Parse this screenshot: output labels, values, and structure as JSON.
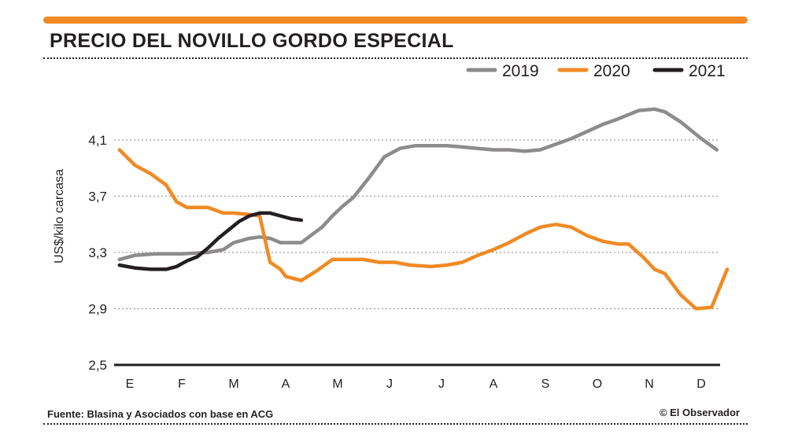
{
  "header": {
    "title": "PRECIO DEL NOVILLO GORDO ESPECIAL",
    "accent_color": "#f08a24"
  },
  "footer": {
    "source": "Fuente: Blasina y Asociados con base en ACG",
    "credit": "© El Observador"
  },
  "chart_data": {
    "type": "line",
    "title": "PRECIO DEL NOVILLO GORDO ESPECIAL",
    "xlabel": "",
    "ylabel": "US$/kilo carcasa",
    "ylim": [
      2.5,
      4.3
    ],
    "yticks": [
      2.5,
      2.9,
      3.3,
      3.7,
      4.1
    ],
    "ytick_labels": [
      "2,5",
      "2,9",
      "3,3",
      "3,7",
      "4,1"
    ],
    "xlim": [
      0,
      11.7
    ],
    "categories": [
      "E",
      "F",
      "M",
      "A",
      "M",
      "J",
      "J",
      "A",
      "S",
      "O",
      "N",
      "D"
    ],
    "grid": "horizontal dotted",
    "legend_position": "top-right",
    "series": [
      {
        "name": "2019",
        "color": "#8e8b8c",
        "x": [
          -0.2,
          0.1,
          0.5,
          1.0,
          1.5,
          1.8,
          2.0,
          2.3,
          2.5,
          2.7,
          2.9,
          3.1,
          3.3,
          3.7,
          3.9,
          4.1,
          4.3,
          4.6,
          4.9,
          5.2,
          5.5,
          5.8,
          6.1,
          6.4,
          6.7,
          7.0,
          7.3,
          7.6,
          7.9,
          8.2,
          8.5,
          8.8,
          9.1,
          9.4,
          9.6,
          9.8,
          10.1,
          10.3,
          10.6,
          11.0,
          11.3
        ],
        "values": [
          3.25,
          3.28,
          3.29,
          3.29,
          3.3,
          3.32,
          3.37,
          3.4,
          3.41,
          3.4,
          3.37,
          3.37,
          3.37,
          3.48,
          3.56,
          3.63,
          3.69,
          3.83,
          3.98,
          4.04,
          4.06,
          4.06,
          4.06,
          4.05,
          4.04,
          4.03,
          4.03,
          4.02,
          4.03,
          4.07,
          4.11,
          4.16,
          4.21,
          4.25,
          4.28,
          4.31,
          4.32,
          4.3,
          4.23,
          4.11,
          4.03
        ]
      },
      {
        "name": "2020",
        "color": "#f08a24",
        "x": [
          -0.2,
          0.1,
          0.4,
          0.7,
          0.9,
          1.1,
          1.3,
          1.5,
          1.8,
          2.0,
          2.3,
          2.5,
          2.7,
          2.9,
          3.0,
          3.3,
          3.6,
          3.9,
          4.2,
          4.5,
          4.8,
          5.1,
          5.4,
          5.8,
          6.1,
          6.4,
          6.7,
          7.0,
          7.3,
          7.6,
          7.9,
          8.2,
          8.5,
          8.8,
          9.1,
          9.4,
          9.6,
          9.9,
          10.1,
          10.3,
          10.6,
          10.9,
          11.2,
          11.5
        ],
        "values": [
          4.03,
          3.92,
          3.86,
          3.78,
          3.66,
          3.62,
          3.62,
          3.62,
          3.58,
          3.58,
          3.57,
          3.56,
          3.23,
          3.18,
          3.13,
          3.1,
          3.17,
          3.25,
          3.25,
          3.25,
          3.23,
          3.23,
          3.21,
          3.2,
          3.21,
          3.23,
          3.28,
          3.32,
          3.37,
          3.43,
          3.48,
          3.5,
          3.48,
          3.42,
          3.38,
          3.36,
          3.36,
          3.26,
          3.18,
          3.15,
          3.0,
          2.9,
          2.91,
          3.18
        ]
      },
      {
        "name": "2021",
        "color": "#231f20",
        "x": [
          -0.2,
          0.1,
          0.4,
          0.7,
          0.9,
          1.1,
          1.3,
          1.5,
          1.7,
          1.9,
          2.1,
          2.3,
          2.5,
          2.7,
          2.9,
          3.1,
          3.3
        ],
        "values": [
          3.21,
          3.19,
          3.18,
          3.18,
          3.2,
          3.24,
          3.27,
          3.33,
          3.4,
          3.46,
          3.52,
          3.56,
          3.58,
          3.58,
          3.56,
          3.54,
          3.53
        ]
      }
    ]
  }
}
